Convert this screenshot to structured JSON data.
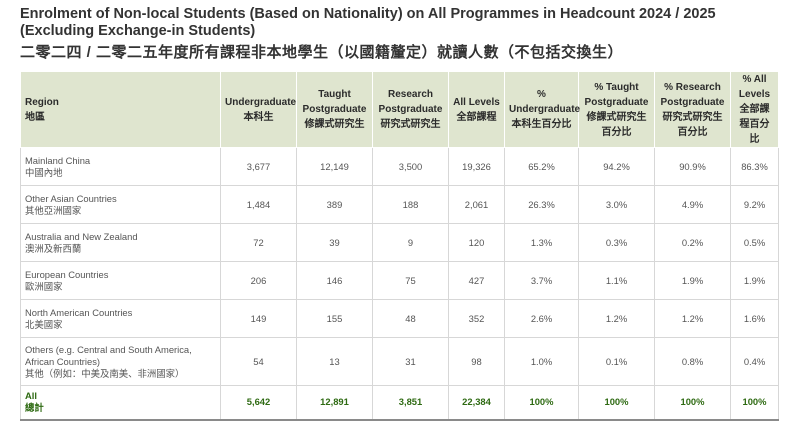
{
  "title_en": "Enrolment of Non-local Students (Based on Nationality) on All Programmes in Headcount 2024 / 2025 (Excluding Exchange-in Students)",
  "title_zh": "二零二四 / 二零二五年度所有課程非本地學生（以國籍釐定）就讀人數（不包括交換生）",
  "headers": [
    {
      "en": "Region",
      "zh": "地區"
    },
    {
      "en": "Undergraduate",
      "zh": "本科生"
    },
    {
      "en": "Taught Postgraduate",
      "zh": "修課式研究生"
    },
    {
      "en": "Research Postgraduate",
      "zh": "研究式研究生"
    },
    {
      "en": "All Levels",
      "zh": "全部課程"
    },
    {
      "en": "% Undergraduate",
      "zh": "本科生百分比"
    },
    {
      "en": "% Taught Postgraduate",
      "zh": "修課式研究生百分比"
    },
    {
      "en": "% Research Postgraduate",
      "zh": "研究式研究生百分比"
    },
    {
      "en": "% All Levels",
      "zh": "全部課程百分比"
    }
  ],
  "rows": [
    {
      "region_en": "Mainland China",
      "region_zh": "中國內地",
      "ug": "3,677",
      "tpg": "12,149",
      "rpg": "3,500",
      "all": "19,326",
      "pct_ug": "65.2%",
      "pct_tpg": "94.2%",
      "pct_rpg": "90.9%",
      "pct_all": "86.3%"
    },
    {
      "region_en": "Other Asian Countries",
      "region_zh": "其他亞洲國家",
      "ug": "1,484",
      "tpg": "389",
      "rpg": "188",
      "all": "2,061",
      "pct_ug": "26.3%",
      "pct_tpg": "3.0%",
      "pct_rpg": "4.9%",
      "pct_all": "9.2%"
    },
    {
      "region_en": "Australia and New Zealand",
      "region_zh": "澳洲及新西蘭",
      "ug": "72",
      "tpg": "39",
      "rpg": "9",
      "all": "120",
      "pct_ug": "1.3%",
      "pct_tpg": "0.3%",
      "pct_rpg": "0.2%",
      "pct_all": "0.5%"
    },
    {
      "region_en": "European Countries",
      "region_zh": "歐洲國家",
      "ug": "206",
      "tpg": "146",
      "rpg": "75",
      "all": "427",
      "pct_ug": "3.7%",
      "pct_tpg": "1.1%",
      "pct_rpg": "1.9%",
      "pct_all": "1.9%"
    },
    {
      "region_en": "North American Countries",
      "region_zh": "北美國家",
      "ug": "149",
      "tpg": "155",
      "rpg": "48",
      "all": "352",
      "pct_ug": "2.6%",
      "pct_tpg": "1.2%",
      "pct_rpg": "1.2%",
      "pct_all": "1.6%"
    },
    {
      "region_en": "Others (e.g. Central and South America, African Countries)",
      "region_zh": "其他（例如：中美及南美、非洲國家）",
      "ug": "54",
      "tpg": "13",
      "rpg": "31",
      "all": "98",
      "pct_ug": "1.0%",
      "pct_tpg": "0.1%",
      "pct_rpg": "0.8%",
      "pct_all": "0.4%"
    }
  ],
  "total": {
    "region_en": "All",
    "region_zh": "總計",
    "ug": "5,642",
    "tpg": "12,891",
    "rpg": "3,851",
    "all": "22,384",
    "pct_ug": "100%",
    "pct_tpg": "100%",
    "pct_rpg": "100%",
    "pct_all": "100%"
  },
  "colors": {
    "header_bg": "#dfe5cf",
    "total_text": "#2e6a12",
    "border": "#d7d7d7"
  }
}
